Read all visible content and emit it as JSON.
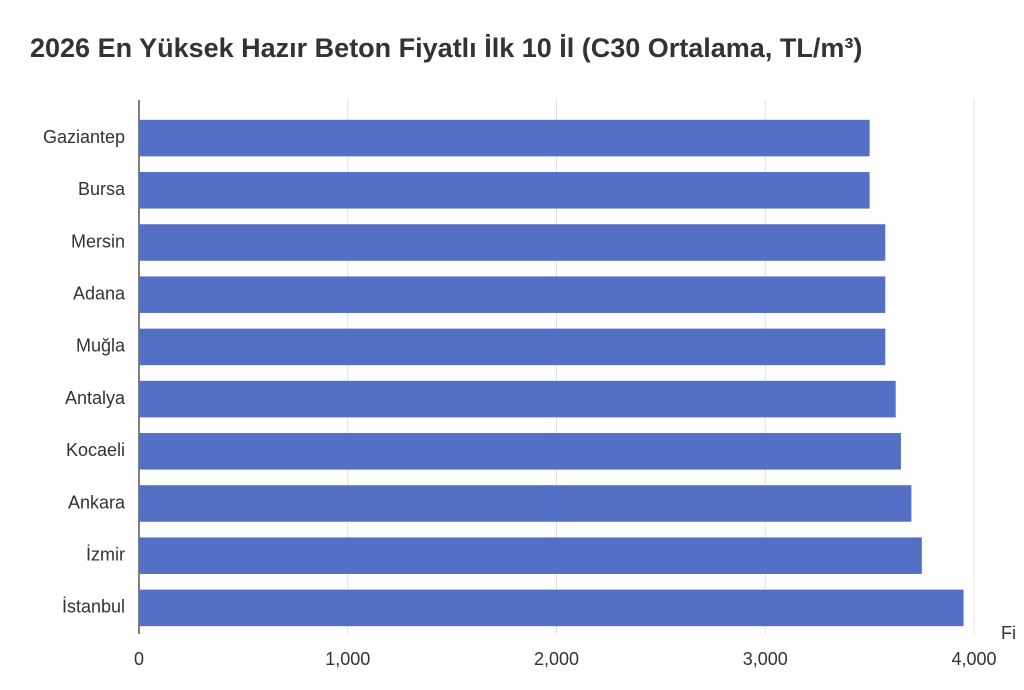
{
  "chart_data": {
    "type": "hbar",
    "title": "2026 En Yüksek Hazır Beton Fiyatlı İlk 10 İl (C30 Ortalama, TL/m³)",
    "x_label": "Fi",
    "categories": [
      "Gaziantep",
      "Bursa",
      "Mersin",
      "Adana",
      "Muğla",
      "Antalya",
      "Kocaeli",
      "Ankara",
      "İzmir",
      "İstanbul"
    ],
    "values": [
      3500,
      3500,
      3575,
      3575,
      3575,
      3625,
      3650,
      3700,
      3750,
      3950
    ],
    "color": "#5470c6",
    "xlim": [
      0,
      4000
    ],
    "xticks": [
      0,
      {
        "value": 1000,
        "label": "1,000"
      },
      {
        "value": 2000,
        "label": "2,000"
      },
      {
        "value": 3000,
        "label": "3,000"
      },
      {
        "value": 4000,
        "label": "4,000"
      }
    ],
    "grid": true
  }
}
